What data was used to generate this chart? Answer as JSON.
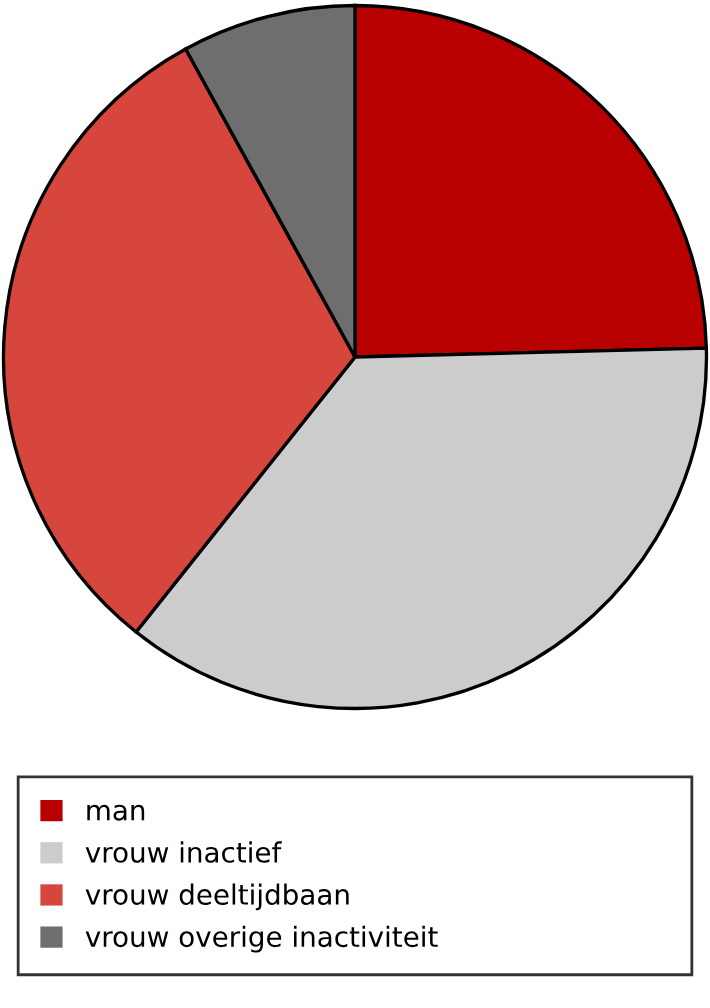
{
  "chart_data": {
    "type": "pie",
    "categories": [
      "man",
      "vrouw inactief",
      "vrouw deeltijdbaan",
      "vrouw overige inactiviteit"
    ],
    "values": [
      24.6,
      36.1,
      31.3,
      8.0
    ],
    "colors": [
      "#b80000",
      "#cccccc",
      "#d6463d",
      "#6e6e6e"
    ],
    "legend": "bottom"
  }
}
